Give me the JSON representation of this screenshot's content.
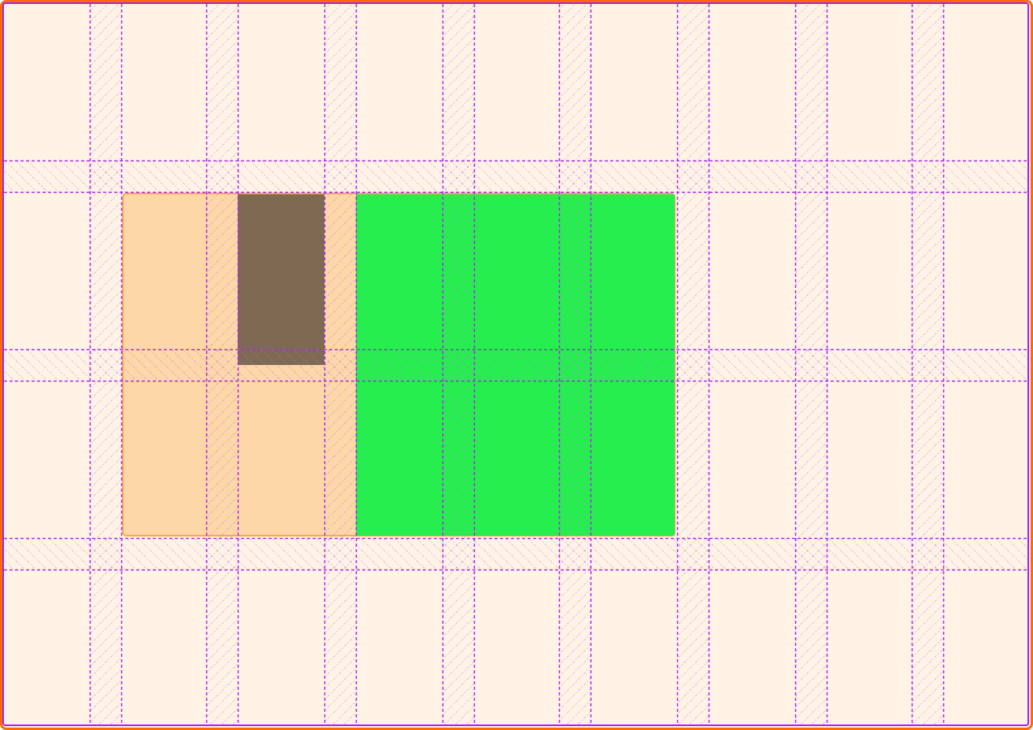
{
  "colors": {
    "background": "#fff3e5",
    "outer_border": "#ff6a00",
    "grid_overlay": "#a62af0",
    "container": "#fdd7a7",
    "container_border": "#ffa64d",
    "item_brown": "#7e6a52",
    "item_green": "#27ee4f"
  }
}
